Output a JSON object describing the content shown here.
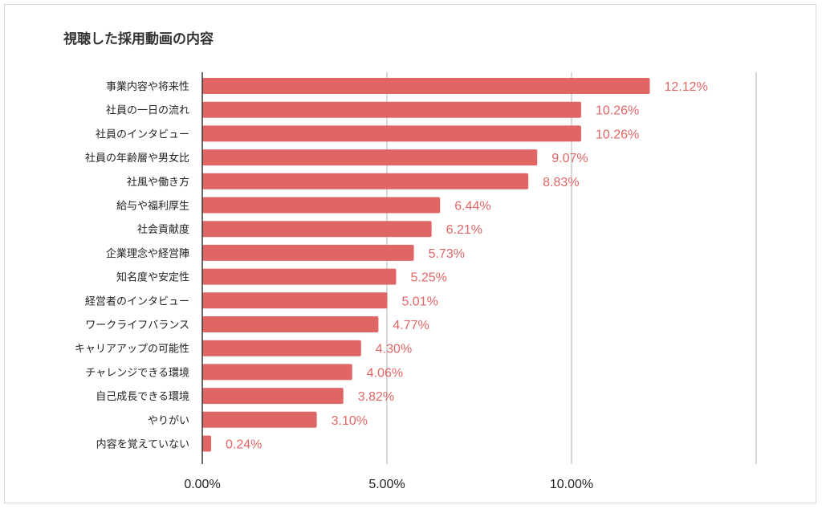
{
  "chart_data": {
    "type": "bar",
    "orientation": "horizontal",
    "title": "視聴した採用動画の内容",
    "categories": [
      "事業内容や将来性",
      "社員の一日の流れ",
      "社員のインタビュー",
      "社員の年齢層や男女比",
      "社風や働き方",
      "給与や福利厚生",
      "社会貢献度",
      "企業理念や経営陣",
      "知名度や安定性",
      "経営者のインタビュー",
      "ワークライフバランス",
      "キャリアアップの可能性",
      "チャレンジできる環境",
      "自己成長できる環境",
      "やりがい",
      "内容を覚えていない"
    ],
    "values": [
      12.12,
      10.26,
      10.26,
      9.07,
      8.83,
      6.44,
      6.21,
      5.73,
      5.25,
      5.01,
      4.77,
      4.3,
      4.06,
      3.82,
      3.1,
      0.24
    ],
    "value_labels": [
      "12.12%",
      "10.26%",
      "10.26%",
      "9.07%",
      "8.83%",
      "6.44%",
      "6.21%",
      "5.73%",
      "5.25%",
      "5.01%",
      "4.77%",
      "4.30%",
      "4.06%",
      "3.82%",
      "3.10%",
      "0.24%"
    ],
    "xticks": [
      0,
      5,
      10
    ],
    "xtick_labels": [
      "0.00%",
      "5.00%",
      "10.00%"
    ],
    "xlim": [
      0,
      15
    ],
    "grid": true,
    "bar_color": "#e06666",
    "label_color": "#e06666",
    "grid_color": "#cccccc",
    "xlabel": "",
    "ylabel": ""
  }
}
